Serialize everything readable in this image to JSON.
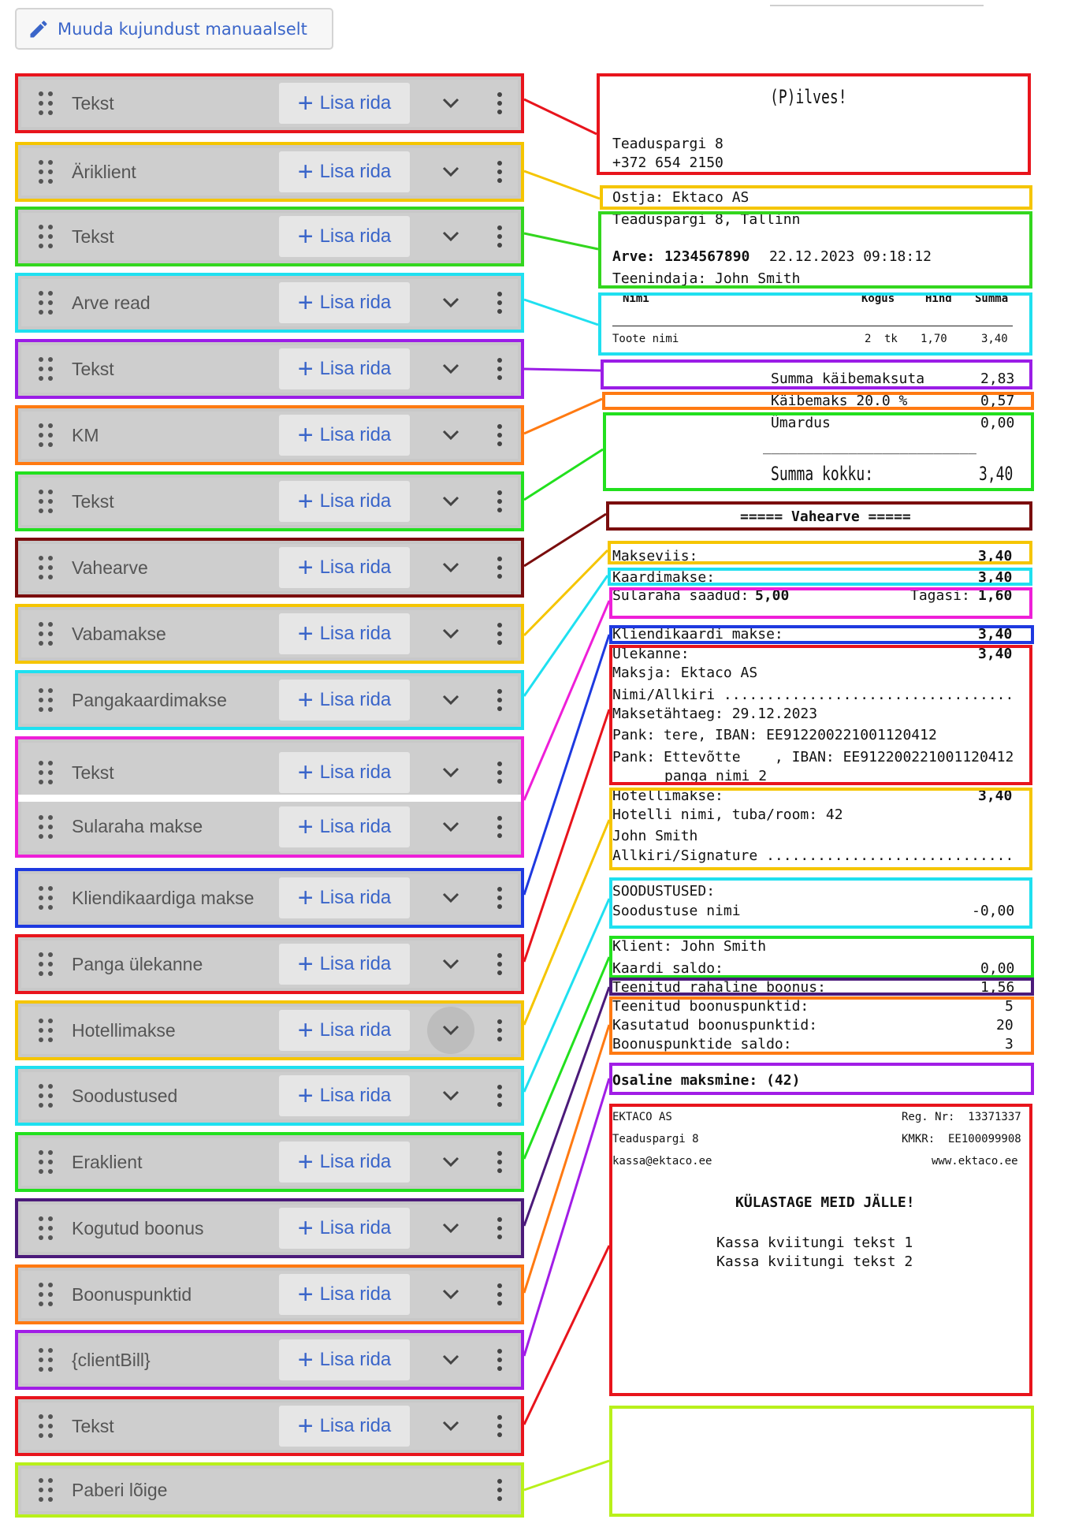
{
  "edit_button": {
    "label": "Muuda kujundust manuaalselt",
    "icon": "pencil-icon"
  },
  "add_row_label": "Lisa rida",
  "blocks": [
    {
      "label": "Tekst",
      "color": "#e8141c"
    },
    {
      "label": "Äriklient",
      "color": "#f5c500"
    },
    {
      "label": "Tekst",
      "color": "#33d61e"
    },
    {
      "label": "Arve read",
      "color": "#1fe0f0"
    },
    {
      "label": "Tekst",
      "color": "#9b1de6"
    },
    {
      "label": "KM",
      "color": "#ff7a12"
    },
    {
      "label": "Tekst",
      "color": "#22e01e"
    },
    {
      "label": "Vahearve",
      "color": "#7a0d0d"
    },
    {
      "label": "Vabamakse",
      "color": "#f5c500"
    },
    {
      "label": "Pangakaardimakse",
      "color": "#1fe0f0"
    },
    {
      "label": "Tekst",
      "color": "#ee1fd8"
    },
    {
      "label": "Sularaha makse",
      "color": "#ee1fd8"
    },
    {
      "label": "Kliendikaardiga makse",
      "color": "#1e39e0"
    },
    {
      "label": "Panga ülekanne",
      "color": "#e8141c"
    },
    {
      "label": "Hotellimakse",
      "color": "#f5c500"
    },
    {
      "label": "Soodustused",
      "color": "#1fe0f0"
    },
    {
      "label": "Eraklient",
      "color": "#22e01e"
    },
    {
      "label": "Kogutud boonus",
      "color": "#4b1a7a"
    },
    {
      "label": "Boonuspunktid",
      "color": "#ff7a12"
    },
    {
      "label": "{clientBill}",
      "color": "#a11de6"
    },
    {
      "label": "Tekst",
      "color": "#e8141c"
    },
    {
      "label": "Paberi lõige",
      "color": "#b8f01a"
    }
  ],
  "receipt": {
    "shop_name": "(P)ilves!",
    "address": "Teaduspargi 8",
    "phone": "+372 654 2150",
    "buyer": "Ostja: Ektaco AS",
    "buyer_address": "Teaduspargi 8, Tallinn",
    "invoice_label": "Arve:",
    "invoice_number": "1234567890",
    "invoice_datetime": "22.12.2023 09:18:12",
    "server": "Teenindaja: John Smith",
    "col_name": "Nimi",
    "col_qty": "Kogus",
    "col_price": "Hind",
    "col_sum": "Summa",
    "item_name": "Toote nimi",
    "item_qty": "2",
    "item_unit": "tk",
    "item_price": "1,70",
    "item_sum": "3,40",
    "sum_without_vat_label": "Summa käibemaksuta",
    "sum_without_vat": "2,83",
    "vat_label": "Käibemaks 20.0 %",
    "vat": "0,57",
    "rounding_label": "Ümardus",
    "rounding": "0,00",
    "total_rule": "_________________________",
    "total_label": "Summa kokku:",
    "total": "3,40",
    "subtotal_title": "===== Vahearve =====",
    "payment_method_label": "Makseviis:",
    "payment_method": "3,40",
    "card_payment_label": "Kaardimakse:",
    "card_payment": "3,40",
    "cash_received_label": "Sularaha saadud:",
    "cash_received": "5,00",
    "change_label": "Tagasi:",
    "change": "1,60",
    "clientcard_label": "Kliendikaardi makse:",
    "clientcard": "3,40",
    "transfer_label": "Ülekanne:",
    "transfer": "3,40",
    "payer": "Maksja: Ektaco AS",
    "name_sign": "Nimi/Allkiri ..................................",
    "due_date": "Maksetähtaeg: 29.12.2023",
    "bank1": "Pank: tere, IBAN: EE912200221001120412",
    "bank2": "Pank: Ettevõtte    , IBAN: EE912200221001120412",
    "bank2_cont": "panga nimi 2",
    "hotel_label": "Hotellimakse:",
    "hotel": "3,40",
    "hotel_room": "Hotelli nimi, tuba/room: 42",
    "hotel_guest": "John Smith",
    "signature": "Allkiri/Signature .............................",
    "discounts_title": "SOODUSTUSED:",
    "discount_name": "Soodustuse nimi",
    "discount_value": "-0,00",
    "client": "Klient: John Smith",
    "card_balance_label": "Kaardi saldo:",
    "card_balance": "0,00",
    "earned_bonus_label": "Teenitud rahaline boonus:",
    "earned_bonus": "1,56",
    "earned_points_label": "Teenitud boonuspunktid:",
    "earned_points": "5",
    "used_points_label": "Kasutatud boonuspunktid:",
    "used_points": "20",
    "points_balance_label": "Boonuspunktide saldo:",
    "points_balance": "3",
    "partial_payment": "Osaline maksmine: (42)",
    "company": "EKTACO AS",
    "reg_nr": "Reg. Nr:  13371337",
    "company_address": "Teaduspargi 8",
    "kmkr": "KMKR:  EE100099908",
    "email": "kassa@ektaco.ee",
    "web": "www.ektaco.ee",
    "thanks": "KÜLASTAGE MEID JÄLLE!",
    "footer1": "Kassa kviitungi tekst 1",
    "footer2": "Kassa kviitungi tekst 2"
  }
}
